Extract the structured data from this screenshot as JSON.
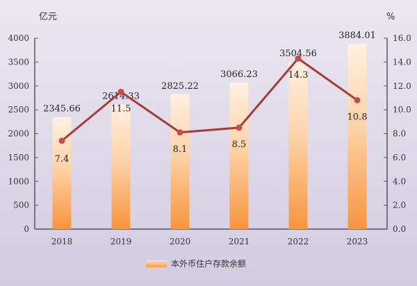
{
  "chart_data": {
    "type": "bar+line",
    "categories": [
      "2018",
      "2019",
      "2020",
      "2021",
      "2022",
      "2023"
    ],
    "series": [
      {
        "name": "本外币住户存款余额",
        "type": "bar",
        "axis": "left",
        "values": [
          2345.66,
          2614.33,
          2825.22,
          3066.23,
          3504.56,
          3884.01
        ],
        "color": "#f79a45"
      },
      {
        "type": "line",
        "axis": "right",
        "values": [
          7.4,
          11.5,
          8.1,
          8.5,
          14.3,
          10.8
        ],
        "color": "#a33b3b"
      }
    ],
    "left_axis": {
      "unit": "亿元",
      "ylim": [
        0,
        4000
      ],
      "ticks": [
        "0",
        "500",
        "1000",
        "1500",
        "2000",
        "2500",
        "3000",
        "3500",
        "4000"
      ]
    },
    "right_axis": {
      "unit": "%",
      "ylim": [
        0,
        16
      ],
      "ticks": [
        "0.0",
        "2.0",
        "4.0",
        "6.0",
        "8.0",
        "10.0",
        "12.0",
        "14.0",
        "16.0"
      ]
    },
    "legend": {
      "position": "bottom",
      "entries": [
        "本外币住户存款余额"
      ]
    },
    "grid": false
  }
}
